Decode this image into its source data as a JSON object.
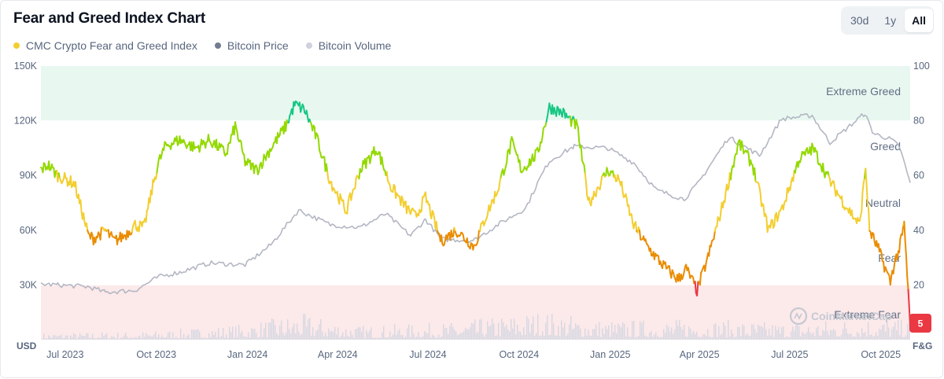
{
  "title": "Fear and Greed Index Chart",
  "range_buttons": [
    {
      "label": "30d",
      "active": false
    },
    {
      "label": "1y",
      "active": false
    },
    {
      "label": "All",
      "active": true
    }
  ],
  "legend": [
    {
      "label": "CMC Crypto Fear and Greed Index",
      "color": "#f3ce2f"
    },
    {
      "label": "Bitcoin Price",
      "color": "#747c91"
    },
    {
      "label": "Bitcoin Volume",
      "color": "#cfd1de"
    }
  ],
  "watermark": "CoinMarketCap",
  "current_value_badge": "5",
  "colors": {
    "extreme_greed_zone": "#e8f8f0",
    "extreme_fear_zone": "#fce9ea",
    "extreme_greed": "#16c784",
    "greed": "#93d900",
    "neutral": "#f3ce2f",
    "fear": "#ea8c00",
    "extreme_fear": "#ea3943",
    "price_line": "#b3b7c3",
    "volume": "#d6d8e2",
    "badge": "#ea3943"
  },
  "chart_data": {
    "type": "line",
    "title": "Fear and Greed Index Chart",
    "x_tick_labels": [
      "Jul 2023",
      "Oct 2023",
      "Jan 2024",
      "Apr 2024",
      "Jul 2024",
      "Oct 2024",
      "Jan 2025",
      "Apr 2025",
      "Jul 2025",
      "Oct 2025"
    ],
    "x_range": [
      "2023-06-28",
      "2025-11-21"
    ],
    "left_axis": {
      "unit_label": "USD",
      "ticks": [
        "150K",
        "120K",
        "90K",
        "60K",
        "30K"
      ],
      "range": [
        0,
        150000
      ]
    },
    "right_axis": {
      "unit_label": "F&G",
      "ticks": [
        "100",
        "80",
        "60",
        "40",
        "20"
      ],
      "range": [
        0,
        100
      ]
    },
    "zones": [
      {
        "label": "Extreme Greed",
        "range": [
          80,
          100
        ]
      },
      {
        "label": "Greed",
        "range": [
          60,
          80
        ]
      },
      {
        "label": "Neutral",
        "range": [
          40,
          60
        ]
      },
      {
        "label": "Fear",
        "range": [
          20,
          40
        ]
      },
      {
        "label": "Extreme Fear",
        "range": [
          0,
          20
        ]
      }
    ],
    "series": [
      {
        "name": "CMC Crypto Fear and Greed Index",
        "axis": "right",
        "x": [
          "2023-06-28",
          "2023-07-05",
          "2023-07-15",
          "2023-08-01",
          "2023-08-15",
          "2023-08-20",
          "2023-09-01",
          "2023-09-10",
          "2023-09-20",
          "2023-10-01",
          "2023-10-10",
          "2023-10-20",
          "2023-10-25",
          "2023-11-01",
          "2023-11-15",
          "2023-12-01",
          "2023-12-15",
          "2024-01-01",
          "2024-01-10",
          "2024-01-20",
          "2024-02-01",
          "2024-02-15",
          "2024-03-01",
          "2024-03-10",
          "2024-03-20",
          "2024-04-01",
          "2024-04-15",
          "2024-05-01",
          "2024-05-15",
          "2024-06-01",
          "2024-06-15",
          "2024-07-01",
          "2024-07-10",
          "2024-07-20",
          "2024-08-05",
          "2024-08-20",
          "2024-09-07",
          "2024-09-20",
          "2024-10-01",
          "2024-10-15",
          "2024-10-25",
          "2024-11-10",
          "2024-11-22",
          "2024-12-05",
          "2024-12-20",
          "2025-01-01",
          "2025-01-20",
          "2025-02-01",
          "2025-02-15",
          "2025-03-01",
          "2025-03-10",
          "2025-03-20",
          "2025-04-01",
          "2025-04-09",
          "2025-04-20",
          "2025-05-01",
          "2025-05-15",
          "2025-06-01",
          "2025-06-15",
          "2025-07-01",
          "2025-07-15",
          "2025-08-01",
          "2025-08-15",
          "2025-09-01",
          "2025-09-15",
          "2025-10-01",
          "2025-10-07",
          "2025-10-11",
          "2025-10-20",
          "2025-11-01",
          "2025-11-05",
          "2025-11-10",
          "2025-11-15",
          "2025-11-21"
        ],
        "y": [
          62,
          64,
          60,
          57,
          38,
          37,
          40,
          36,
          38,
          42,
          41,
          58,
          65,
          71,
          73,
          70,
          73,
          68,
          78,
          65,
          62,
          70,
          78,
          86,
          84,
          74,
          58,
          47,
          62,
          70,
          56,
          48,
          45,
          52,
          36,
          40,
          34,
          46,
          55,
          72,
          62,
          68,
          85,
          83,
          78,
          50,
          62,
          58,
          42,
          34,
          30,
          26,
          22,
          26,
          18,
          30,
          48,
          72,
          64,
          40,
          48,
          66,
          70,
          58,
          50,
          42,
          63,
          40,
          33,
          21,
          28,
          33,
          42,
          5
        ],
        "color_by_value": true
      },
      {
        "name": "Bitcoin Price",
        "axis": "left",
        "x": [
          "2023-06-28",
          "2023-07-15",
          "2023-08-15",
          "2023-09-01",
          "2023-10-01",
          "2023-10-25",
          "2023-11-15",
          "2023-12-15",
          "2024-01-20",
          "2024-02-15",
          "2024-03-14",
          "2024-04-15",
          "2024-05-15",
          "2024-06-10",
          "2024-07-05",
          "2024-07-20",
          "2024-08-05",
          "2024-09-07",
          "2024-10-01",
          "2024-10-29",
          "2024-11-12",
          "2024-11-22",
          "2024-12-17",
          "2025-01-20",
          "2025-02-15",
          "2025-03-10",
          "2025-04-07",
          "2025-04-20",
          "2025-05-22",
          "2025-06-22",
          "2025-07-14",
          "2025-08-14",
          "2025-09-01",
          "2025-10-06",
          "2025-10-15",
          "2025-11-01",
          "2025-11-10",
          "2025-11-21"
        ],
        "y": [
          30500,
          30000,
          29000,
          26000,
          27000,
          34500,
          37000,
          42000,
          41000,
          52000,
          71000,
          63000,
          61500,
          69000,
          57000,
          66000,
          55000,
          54500,
          63000,
          72000,
          88000,
          98000,
          106000,
          105000,
          97000,
          82000,
          77000,
          85000,
          111000,
          101000,
          121000,
          123000,
          108000,
          124000,
          113000,
          110000,
          106000,
          86000
        ]
      },
      {
        "name": "Bitcoin Volume",
        "axis": "none",
        "x": [
          "2023-07",
          "2023-10",
          "2024-01",
          "2024-03",
          "2024-05",
          "2024-08",
          "2024-11",
          "2025-01",
          "2025-04",
          "2025-07",
          "2025-10",
          "2025-11"
        ],
        "y": [
          0.1,
          0.12,
          0.22,
          0.38,
          0.2,
          0.25,
          0.42,
          0.28,
          0.3,
          0.25,
          0.33,
          0.28
        ],
        "note_scale": "relative"
      }
    ]
  }
}
